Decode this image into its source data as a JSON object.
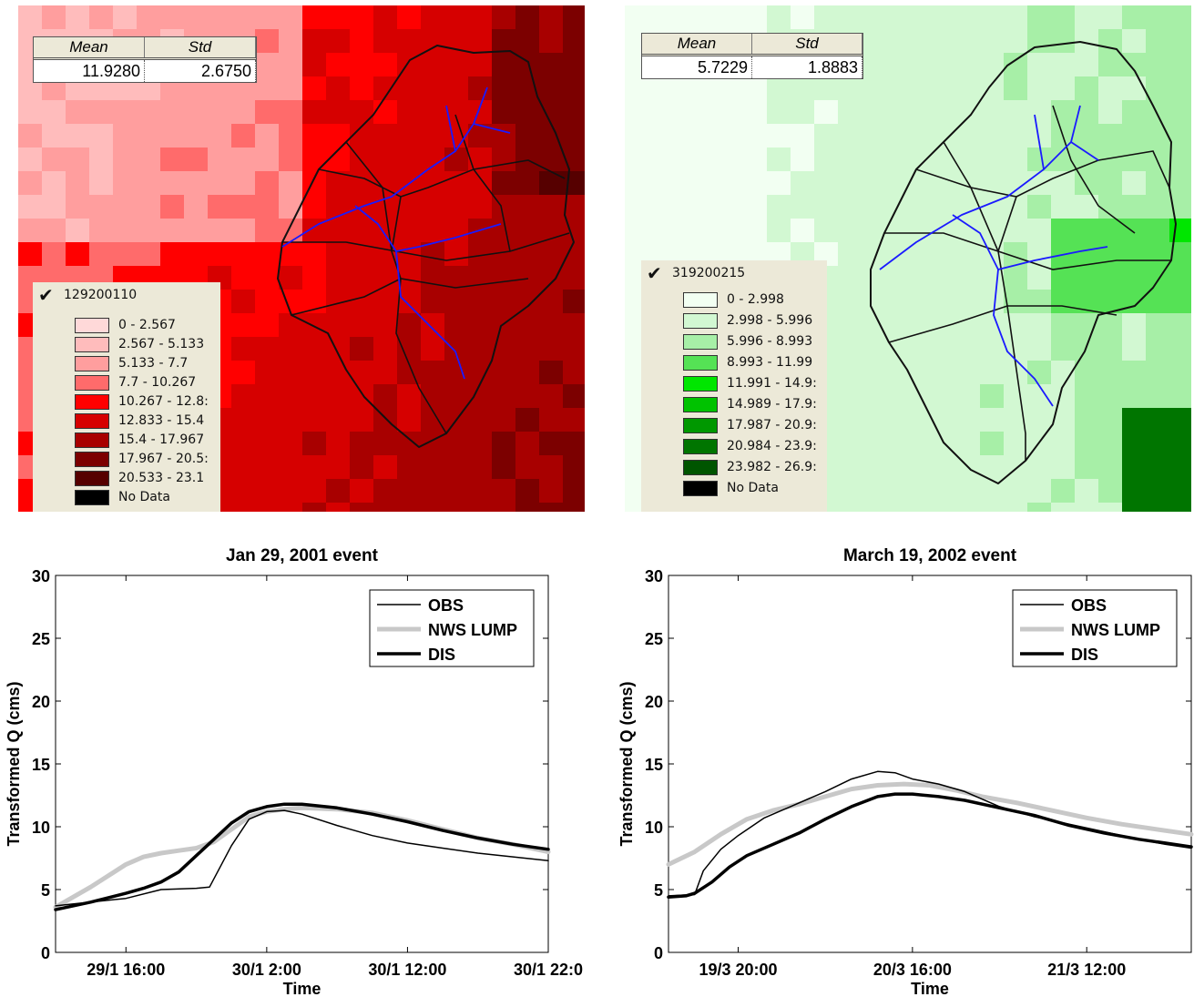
{
  "maps": [
    {
      "stats": {
        "mean_header": "Mean",
        "std_header": "Std",
        "mean_value": "11.9280",
        "std_value": "2.6750"
      },
      "legend": {
        "title": "129200110",
        "items": [
          {
            "label": "0 - 2.567",
            "color": "#ffd9d9"
          },
          {
            "label": "2.567 - 5.133",
            "color": "#ffbcbc"
          },
          {
            "label": "5.133 - 7.7",
            "color": "#ff9e9e"
          },
          {
            "label": "7.7 - 10.267",
            "color": "#ff6b6b"
          },
          {
            "label": "10.267 - 12.8:",
            "color": "#ff0000"
          },
          {
            "label": "12.833 - 15.4",
            "color": "#d60000"
          },
          {
            "label": "15.4 - 17.967",
            "color": "#a80000"
          },
          {
            "label": "17.967 - 20.5:",
            "color": "#7c0000"
          },
          {
            "label": "20.533 - 23.1",
            "color": "#560000"
          },
          {
            "label": "No Data",
            "color": "#000000"
          }
        ]
      }
    },
    {
      "stats": {
        "mean_header": "Mean",
        "std_header": "Std",
        "mean_value": "5.7229",
        "std_value": "1.8883"
      },
      "legend": {
        "title": "319200215",
        "items": [
          {
            "label": "0 - 2.998",
            "color": "#f2fff2"
          },
          {
            "label": "2.998 - 5.996",
            "color": "#d2f8d2"
          },
          {
            "label": "5.996 - 8.993",
            "color": "#a7efa7"
          },
          {
            "label": "8.993 - 11.99",
            "color": "#55e255"
          },
          {
            "label": "11.991 - 14.9:",
            "color": "#00e600"
          },
          {
            "label": "14.989 - 17.9:",
            "color": "#00c200"
          },
          {
            "label": "17.987 - 20.9:",
            "color": "#009800"
          },
          {
            "label": "20.984 - 23.9:",
            "color": "#007500"
          },
          {
            "label": "23.982 - 26.9:",
            "color": "#005500"
          },
          {
            "label": "No Data",
            "color": "#000000"
          }
        ]
      }
    }
  ],
  "chart_data": [
    {
      "type": "line",
      "title": "Jan 29, 2001 event",
      "xlabel": "Time",
      "ylabel": "Transformed Q (cms)",
      "xlim": [
        0,
        112
      ],
      "ylim": [
        0,
        30
      ],
      "yticks": [
        0,
        5,
        10,
        15,
        20,
        25,
        30
      ],
      "xticks": [
        {
          "pos": 16,
          "label": "29/1 16:00"
        },
        {
          "pos": 48,
          "label": "30/1 2:00"
        },
        {
          "pos": 80,
          "label": "30/1 12:00"
        },
        {
          "pos": 112,
          "label": "30/1 22:0"
        }
      ],
      "legend_position": "top-right",
      "series": [
        {
          "name": "OBS",
          "color": "#000000",
          "x": [
            0,
            8,
            16,
            24,
            32,
            35,
            40,
            44,
            48,
            52,
            56,
            64,
            72,
            80,
            88,
            96,
            104,
            112
          ],
          "y": [
            3.7,
            4.0,
            4.3,
            5.0,
            5.1,
            5.2,
            8.5,
            10.6,
            11.2,
            11.3,
            11.0,
            10.1,
            9.3,
            8.7,
            8.3,
            7.9,
            7.6,
            7.3
          ]
        },
        {
          "name": "NWS LUMP",
          "color": "#c8c8c8",
          "x": [
            0,
            8,
            16,
            20,
            24,
            28,
            32,
            36,
            40,
            44,
            48,
            52,
            56,
            64,
            72,
            80,
            88,
            96,
            104,
            112
          ],
          "y": [
            3.6,
            5.2,
            7.0,
            7.6,
            7.9,
            8.1,
            8.3,
            8.8,
            9.8,
            10.8,
            11.2,
            11.4,
            11.5,
            11.4,
            11.1,
            10.5,
            9.8,
            9.1,
            8.6,
            8.0
          ]
        },
        {
          "name": "DIS",
          "color": "#000000",
          "x": [
            0,
            8,
            16,
            20,
            24,
            28,
            32,
            36,
            40,
            44,
            48,
            52,
            56,
            64,
            72,
            80,
            88,
            96,
            104,
            112
          ],
          "y": [
            3.4,
            4.0,
            4.7,
            5.1,
            5.6,
            6.4,
            7.7,
            9.0,
            10.3,
            11.2,
            11.6,
            11.8,
            11.8,
            11.5,
            11.0,
            10.4,
            9.7,
            9.1,
            8.6,
            8.2
          ]
        }
      ]
    },
    {
      "type": "line",
      "title": "March 19, 2002 event",
      "xlabel": "Time",
      "ylabel": "Transformed Q (cms)",
      "xlim": [
        0,
        60
      ],
      "ylim": [
        0,
        30
      ],
      "yticks": [
        0,
        5,
        10,
        15,
        20,
        25,
        30
      ],
      "xticks": [
        {
          "pos": 8,
          "label": "19/3 20:00"
        },
        {
          "pos": 28,
          "label": "20/3 16:00"
        },
        {
          "pos": 48,
          "label": "21/3 12:00"
        }
      ],
      "legend_position": "top-right",
      "series": [
        {
          "name": "OBS",
          "color": "#000000",
          "x": [
            0,
            3,
            4,
            6,
            8,
            11,
            14,
            18,
            21,
            24,
            26,
            28,
            31,
            34,
            38,
            42,
            46,
            50,
            54,
            57,
            60
          ],
          "y": [
            4.5,
            4.6,
            6.5,
            8.2,
            9.3,
            10.7,
            11.6,
            12.8,
            13.8,
            14.4,
            14.3,
            13.8,
            13.4,
            12.8,
            11.6,
            10.8,
            10.2,
            9.6,
            9.0,
            8.6,
            8.3
          ]
        },
        {
          "name": "NWS LUMP",
          "color": "#c8c8c8",
          "x": [
            0,
            3,
            6,
            9,
            12,
            15,
            18,
            21,
            24,
            27,
            30,
            33,
            36,
            40,
            44,
            48,
            52,
            56,
            60
          ],
          "y": [
            7.0,
            8.0,
            9.4,
            10.6,
            11.3,
            11.8,
            12.4,
            13.0,
            13.3,
            13.4,
            13.3,
            12.9,
            12.4,
            11.9,
            11.3,
            10.7,
            10.2,
            9.8,
            9.4
          ]
        },
        {
          "name": "DIS",
          "color": "#000000",
          "x": [
            0,
            2,
            3,
            5,
            7,
            9,
            12,
            15,
            18,
            21,
            24,
            26,
            28,
            31,
            34,
            38,
            42,
            46,
            50,
            54,
            57,
            60
          ],
          "y": [
            4.4,
            4.5,
            4.7,
            5.6,
            6.8,
            7.7,
            8.6,
            9.5,
            10.6,
            11.6,
            12.4,
            12.6,
            12.6,
            12.4,
            12.1,
            11.5,
            10.9,
            10.1,
            9.5,
            9.0,
            8.7,
            8.4
          ]
        }
      ]
    }
  ]
}
